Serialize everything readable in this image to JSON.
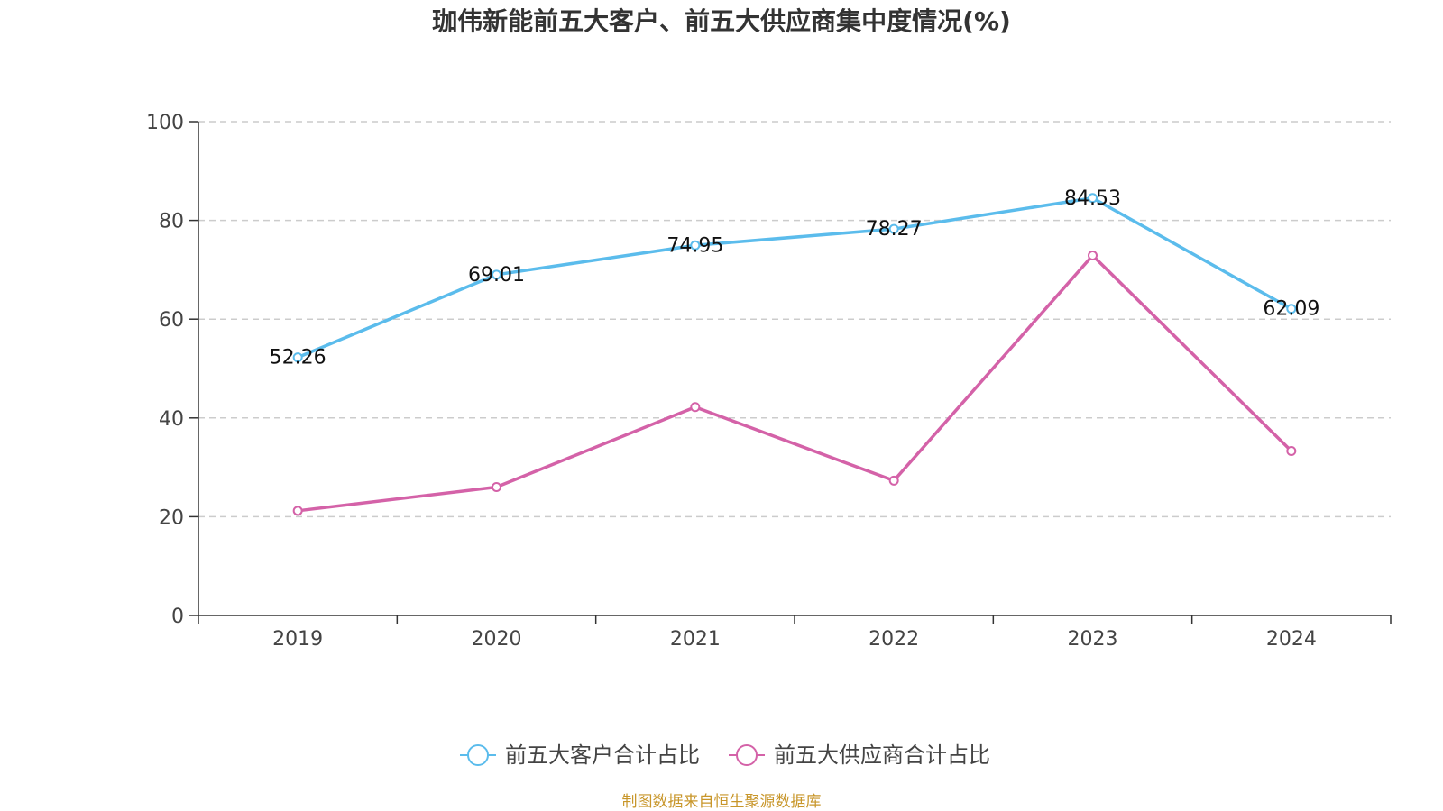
{
  "chart_data": {
    "type": "line",
    "title": "珈伟新能前五大客户、前五大供应商集中度情况(%)",
    "categories": [
      "2019",
      "2020",
      "2021",
      "2022",
      "2023",
      "2024"
    ],
    "ylim": [
      0,
      100
    ],
    "yticks": [
      0,
      20,
      40,
      60,
      80,
      100
    ],
    "grid": true,
    "legend_position": "bottom",
    "series": [
      {
        "name": "前五大客户合计占比",
        "color": "#5bbcec",
        "values": [
          52.26,
          69.01,
          74.95,
          78.27,
          84.53,
          62.09
        ],
        "data_labels": [
          "52.26",
          "69.01",
          "74.95",
          "78.27",
          "84.53",
          "62.09"
        ]
      },
      {
        "name": "前五大供应商合计占比",
        "color": "#d462a8",
        "values": [
          21.2,
          26.0,
          42.2,
          27.3,
          72.9,
          33.3
        ],
        "data_labels": []
      }
    ]
  },
  "source_note": "制图数据来自恒生聚源数据库"
}
